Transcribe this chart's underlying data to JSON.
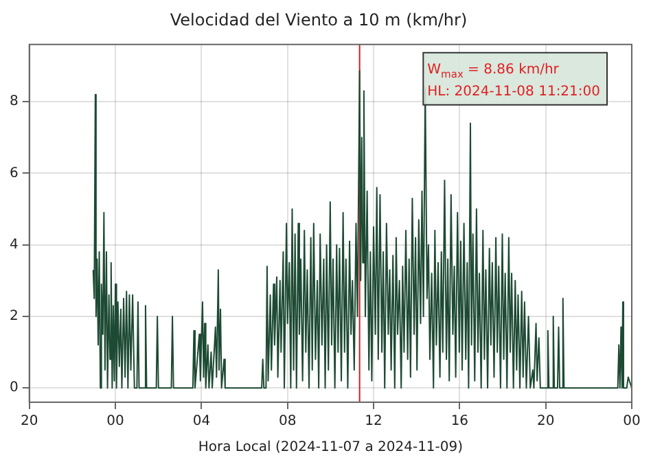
{
  "chart_data": {
    "type": "line",
    "title": "Velocidad del Viento a 10 m (km/hr)",
    "xlabel": "Hora Local (2024-11-07 a 2024-11-09)",
    "annotations": [
      "W$_{max}$ = 8.86 km/hr",
      "HL: 2024-11-08 11:21:00"
    ],
    "xlim": [
      "2024-11-07T20:00",
      "2024-11-09T00:00"
    ],
    "xticks": [
      {
        "value": "2024-11-07T20:00",
        "label": "20"
      },
      {
        "value": "2024-11-08T00:00",
        "label": "00"
      },
      {
        "value": "2024-11-08T04:00",
        "label": "04"
      },
      {
        "value": "2024-11-08T08:00",
        "label": "08"
      },
      {
        "value": "2024-11-08T12:00",
        "label": "12"
      },
      {
        "value": "2024-11-08T16:00",
        "label": "16"
      },
      {
        "value": "2024-11-08T20:00",
        "label": "20"
      },
      {
        "value": "2024-11-09T00:00",
        "label": "00"
      }
    ],
    "ylim": [
      -0.4,
      9.6
    ],
    "yticks": [
      0,
      2,
      4,
      6,
      8
    ],
    "grid": true,
    "marker": "none",
    "line_style": "solid",
    "legend": false,
    "ref_lines": [
      {
        "axis": "x",
        "value": "2024-11-08T11:21",
        "color": "#cc2222"
      }
    ],
    "series": [
      {
        "color": "#1d4a33",
        "x": [
          "2024-11-07T22:58",
          "2024-11-07T23:01",
          "2024-11-07T23:04",
          "2024-11-07T23:06",
          "2024-11-07T23:09",
          "2024-11-07T23:12",
          "2024-11-07T23:15",
          "2024-11-07T23:18",
          "2024-11-07T23:21",
          "2024-11-07T23:25",
          "2024-11-07T23:28",
          "2024-11-07T23:31",
          "2024-11-07T23:35",
          "2024-11-07T23:38",
          "2024-11-07T23:42",
          "2024-11-07T23:45",
          "2024-11-07T23:48",
          "2024-11-07T23:51",
          "2024-11-07T23:54",
          "2024-11-07T23:57",
          "2024-11-08T00:00",
          "2024-11-08T00:03",
          "2024-11-08T00:07",
          "2024-11-08T00:11",
          "2024-11-08T00:15",
          "2024-11-08T00:18",
          "2024-11-08T00:23",
          "2024-11-08T00:27",
          "2024-11-08T00:31",
          "2024-11-08T00:35",
          "2024-11-08T00:39",
          "2024-11-08T00:43",
          "2024-11-08T00:48",
          "2024-11-08T00:53",
          "2024-11-08T01:00",
          "2024-11-08T01:03",
          "2024-11-08T01:06",
          "2024-11-08T01:21",
          "2024-11-08T01:24",
          "2024-11-08T01:27",
          "2024-11-08T01:54",
          "2024-11-08T01:57",
          "2024-11-08T02:00",
          "2024-11-08T02:36",
          "2024-11-08T02:39",
          "2024-11-08T02:42",
          "2024-11-08T03:36",
          "2024-11-08T03:39",
          "2024-11-08T03:42",
          "2024-11-08T03:54",
          "2024-11-08T03:57",
          "2024-11-08T04:03",
          "2024-11-08T04:06",
          "2024-11-08T04:09",
          "2024-11-08T04:12",
          "2024-11-08T04:18",
          "2024-11-08T04:21",
          "2024-11-08T04:27",
          "2024-11-08T04:30",
          "2024-11-08T04:39",
          "2024-11-08T04:42",
          "2024-11-08T04:47",
          "2024-11-08T04:49",
          "2024-11-08T04:53",
          "2024-11-08T04:56",
          "2024-11-08T05:03",
          "2024-11-08T05:06",
          "2024-11-08T06:48",
          "2024-11-08T06:51",
          "2024-11-08T06:54",
          "2024-11-08T07:00",
          "2024-11-08T07:03",
          "2024-11-08T07:06",
          "2024-11-08T07:12",
          "2024-11-08T07:15",
          "2024-11-08T07:21",
          "2024-11-08T07:24",
          "2024-11-08T07:30",
          "2024-11-08T07:33",
          "2024-11-08T07:39",
          "2024-11-08T07:42",
          "2024-11-08T07:48",
          "2024-11-08T07:51",
          "2024-11-08T07:57",
          "2024-11-08T08:00",
          "2024-11-08T08:05",
          "2024-11-08T08:09",
          "2024-11-08T08:13",
          "2024-11-08T08:17",
          "2024-11-08T08:21",
          "2024-11-08T08:25",
          "2024-11-08T08:30",
          "2024-11-08T08:33",
          "2024-11-08T08:37",
          "2024-11-08T08:42",
          "2024-11-08T08:47",
          "2024-11-08T08:51",
          "2024-11-08T08:55",
          "2024-11-08T09:00",
          "2024-11-08T09:05",
          "2024-11-08T09:09",
          "2024-11-08T09:13",
          "2024-11-08T09:18",
          "2024-11-08T09:23",
          "2024-11-08T09:27",
          "2024-11-08T09:31",
          "2024-11-08T09:36",
          "2024-11-08T09:41",
          "2024-11-08T09:45",
          "2024-11-08T09:49",
          "2024-11-08T09:54",
          "2024-11-08T09:59",
          "2024-11-08T10:03",
          "2024-11-08T10:07",
          "2024-11-08T10:12",
          "2024-11-08T10:17",
          "2024-11-08T10:21",
          "2024-11-08T10:25",
          "2024-11-08T10:30",
          "2024-11-08T10:35",
          "2024-11-08T10:39",
          "2024-11-08T10:43",
          "2024-11-08T10:48",
          "2024-11-08T10:53",
          "2024-11-08T10:57",
          "2024-11-08T11:01",
          "2024-11-08T11:06",
          "2024-11-08T11:11",
          "2024-11-08T11:15",
          "2024-11-08T11:21",
          "2024-11-08T11:24",
          "2024-11-08T11:27",
          "2024-11-08T11:30",
          "2024-11-08T11:33",
          "2024-11-08T11:37",
          "2024-11-08T11:42",
          "2024-11-08T11:47",
          "2024-11-08T11:51",
          "2024-11-08T11:55",
          "2024-11-08T12:00",
          "2024-11-08T12:05",
          "2024-11-08T12:09",
          "2024-11-08T12:13",
          "2024-11-08T12:18",
          "2024-11-08T12:23",
          "2024-11-08T12:27",
          "2024-11-08T12:31",
          "2024-11-08T12:36",
          "2024-11-08T12:41",
          "2024-11-08T12:45",
          "2024-11-08T12:49",
          "2024-11-08T12:54",
          "2024-11-08T12:59",
          "2024-11-08T13:03",
          "2024-11-08T13:07",
          "2024-11-08T13:12",
          "2024-11-08T13:17",
          "2024-11-08T13:21",
          "2024-11-08T13:25",
          "2024-11-08T13:30",
          "2024-11-08T13:35",
          "2024-11-08T13:39",
          "2024-11-08T13:43",
          "2024-11-08T13:48",
          "2024-11-08T13:53",
          "2024-11-08T13:57",
          "2024-11-08T14:01",
          "2024-11-08T14:06",
          "2024-11-08T14:11",
          "2024-11-08T14:15",
          "2024-11-08T14:19",
          "2024-11-08T14:24",
          "2024-11-08T14:29",
          "2024-11-08T14:33",
          "2024-11-08T14:37",
          "2024-11-08T14:42",
          "2024-11-08T14:47",
          "2024-11-08T14:51",
          "2024-11-08T14:55",
          "2024-11-08T15:00",
          "2024-11-08T15:05",
          "2024-11-08T15:09",
          "2024-11-08T15:13",
          "2024-11-08T15:18",
          "2024-11-08T15:23",
          "2024-11-08T15:27",
          "2024-11-08T15:31",
          "2024-11-08T15:36",
          "2024-11-08T15:41",
          "2024-11-08T15:45",
          "2024-11-08T15:49",
          "2024-11-08T15:54",
          "2024-11-08T15:59",
          "2024-11-08T16:03",
          "2024-11-08T16:07",
          "2024-11-08T16:12",
          "2024-11-08T16:17",
          "2024-11-08T16:21",
          "2024-11-08T16:25",
          "2024-11-08T16:30",
          "2024-11-08T16:33",
          "2024-11-08T16:37",
          "2024-11-08T16:42",
          "2024-11-08T16:47",
          "2024-11-08T16:51",
          "2024-11-08T16:55",
          "2024-11-08T17:00",
          "2024-11-08T17:05",
          "2024-11-08T17:09",
          "2024-11-08T17:13",
          "2024-11-08T17:18",
          "2024-11-08T17:23",
          "2024-11-08T17:27",
          "2024-11-08T17:31",
          "2024-11-08T17:36",
          "2024-11-08T17:41",
          "2024-11-08T17:45",
          "2024-11-08T17:49",
          "2024-11-08T17:54",
          "2024-11-08T17:59",
          "2024-11-08T18:03",
          "2024-11-08T18:07",
          "2024-11-08T18:12",
          "2024-11-08T18:17",
          "2024-11-08T18:21",
          "2024-11-08T18:25",
          "2024-11-08T18:30",
          "2024-11-08T18:35",
          "2024-11-08T18:39",
          "2024-11-08T18:43",
          "2024-11-08T18:48",
          "2024-11-08T18:53",
          "2024-11-08T18:57",
          "2024-11-08T19:01",
          "2024-11-08T19:06",
          "2024-11-08T19:12",
          "2024-11-08T19:17",
          "2024-11-08T19:24",
          "2024-11-08T19:27",
          "2024-11-08T19:33",
          "2024-11-08T19:36",
          "2024-11-08T19:41",
          "2024-11-08T19:45",
          "2024-11-08T20:03",
          "2024-11-08T20:06",
          "2024-11-08T20:09",
          "2024-11-08T20:18",
          "2024-11-08T20:21",
          "2024-11-08T20:24",
          "2024-11-08T20:33",
          "2024-11-08T20:36",
          "2024-11-08T20:39",
          "2024-11-08T20:45",
          "2024-11-08T20:48",
          "2024-11-08T20:51",
          "2024-11-08T23:21",
          "2024-11-08T23:24",
          "2024-11-08T23:27",
          "2024-11-08T23:30",
          "2024-11-08T23:33",
          "2024-11-08T23:35",
          "2024-11-08T23:37",
          "2024-11-08T23:40",
          "2024-11-08T23:46",
          "2024-11-08T23:50",
          "2024-11-09T00:00"
        ],
        "values": [
          3.3,
          2.5,
          8.2,
          2.0,
          3.6,
          1.2,
          3.8,
          0,
          2.9,
          1.5,
          4.9,
          0.5,
          3.8,
          0,
          2.6,
          0.8,
          3.5,
          0,
          2.3,
          0.2,
          2.9,
          0,
          2.4,
          0.6,
          2.2,
          0,
          2.5,
          0.3,
          2.7,
          0,
          2.6,
          0.5,
          2.6,
          0,
          0,
          2.4,
          0,
          0,
          2.3,
          0,
          0,
          2.0,
          0,
          0,
          2.0,
          0,
          0,
          1.6,
          0,
          1.5,
          0.2,
          2.4,
          0.3,
          1.8,
          0,
          1.2,
          0,
          1.0,
          0,
          1.7,
          0.3,
          3.3,
          0.5,
          2.2,
          0,
          0.8,
          0,
          0,
          0.8,
          0,
          0,
          3.4,
          0.2,
          2.6,
          0.5,
          2.9,
          1.2,
          3.1,
          0.3,
          3.0,
          1.0,
          3.8,
          0,
          4.6,
          1.8,
          3.5,
          0,
          5.0,
          0.5,
          4.3,
          0,
          4.6,
          1.5,
          3.6,
          0.2,
          4.4,
          1.0,
          3.3,
          0,
          4.2,
          0.5,
          4.6,
          0.8,
          3.0,
          0,
          4.3,
          1.2,
          3.6,
          0,
          4.0,
          0.5,
          5.2,
          1.2,
          3.6,
          0,
          4.0,
          1.0,
          3.9,
          0.2,
          4.9,
          1.0,
          3.6,
          0,
          4.1,
          1.5,
          3.0,
          0.5,
          4.6,
          2.0,
          8.86,
          3.0,
          7.0,
          3.5,
          8.3,
          2.0,
          5.5,
          0.5,
          3.8,
          0.2,
          4.5,
          1.5,
          5.6,
          0.8,
          5.4,
          1.0,
          3.8,
          0,
          4.6,
          1.5,
          3.3,
          0.5,
          3.7,
          0,
          4.2,
          1.5,
          3.0,
          0,
          3.4,
          1.0,
          4.4,
          0.8,
          3.6,
          0.3,
          5.3,
          1.5,
          4.2,
          0.5,
          4.7,
          1.8,
          5.5,
          2.0,
          8.4,
          2.5,
          4.0,
          0.8,
          3.2,
          0,
          4.4,
          1.2,
          3.5,
          0.3,
          3.8,
          1.0,
          5.8,
          0.8,
          3.6,
          0.2,
          5.4,
          1.5,
          3.4,
          0.3,
          4.9,
          1.0,
          4.1,
          0.5,
          4.6,
          0.8,
          3.5,
          0,
          7.4,
          1.2,
          4.3,
          0.2,
          5.0,
          1.0,
          3.2,
          0,
          4.4,
          0.8,
          3.3,
          0,
          3.9,
          1.2,
          3.5,
          0.3,
          4.2,
          1.0,
          3.4,
          0,
          4.3,
          0.8,
          3.2,
          0,
          4.2,
          1.0,
          3.2,
          0,
          3.0,
          0.5,
          2.6,
          0,
          2.7,
          0.3,
          2.4,
          0,
          2.0,
          0,
          0.5,
          0,
          1.8,
          0.2,
          1.4,
          0,
          0,
          1.6,
          0,
          0,
          2.0,
          0,
          0,
          1.7,
          0,
          0,
          2.5,
          0,
          0,
          1.2,
          0,
          1.7,
          0,
          2.4,
          0,
          0,
          0,
          0.3,
          0
        ]
      }
    ]
  }
}
